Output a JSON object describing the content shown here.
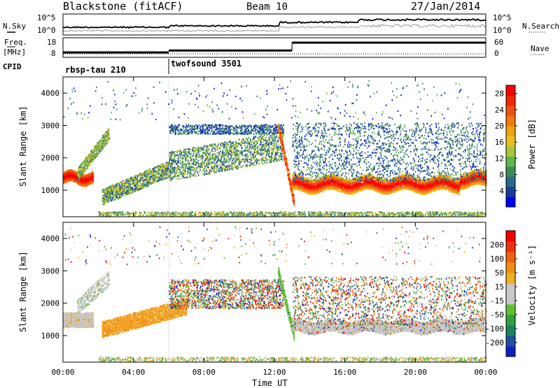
{
  "header": {
    "title": "Blackstone (fitACF)",
    "beam": "Beam 10",
    "date": "27/Jan/2014"
  },
  "summary": {
    "nsky_label": "N.Sky",
    "nsearch_label": "N.Search",
    "freq_label": "Freq.",
    "freq_unit": "[MHz]",
    "nave_label": "Nave",
    "cpid_label": "CPID",
    "left_ticks_noise": [
      "10^5",
      "10^0"
    ],
    "right_ticks_noise": [
      "10^5",
      "10^0"
    ],
    "freq_ticks": [
      "18",
      "8"
    ],
    "nave_ticks": [
      "60",
      "0"
    ],
    "cpid_segments": [
      {
        "name": "rbsp-tau 210",
        "start_h": 0,
        "end_h": 6
      },
      {
        "name": "twofsound 3501",
        "start_h": 6,
        "end_h": 24
      }
    ],
    "freq_mhz": [
      {
        "start_h": 0,
        "end_h": 6,
        "value": 10.5
      },
      {
        "start_h": 6,
        "end_h": 13,
        "value": 11.5
      },
      {
        "start_h": 13,
        "end_h": 24,
        "value": 15.5
      }
    ]
  },
  "chart_data": [
    {
      "type": "heatmap",
      "name": "power",
      "ylabel": "Slant Range [km]",
      "xlabel": "Time UT",
      "xlim": [
        "00:00",
        "24:00"
      ],
      "x_ticks": [
        "00:00",
        "04:00",
        "08:00",
        "12:00",
        "16:00",
        "20:00",
        "00:00"
      ],
      "ylim": [
        180,
        4500
      ],
      "y_ticks": [
        "1000",
        "2000",
        "3000",
        "4000"
      ],
      "colorbar": {
        "label": "Power [dB]",
        "ticks": [
          "4",
          "8",
          "12",
          "16",
          "20",
          "24",
          "28"
        ],
        "range": [
          0,
          30
        ],
        "colors": [
          "#0000ff",
          "#1a3aa0",
          "#2a6a8a",
          "#3c8c5a",
          "#5cb84a",
          "#a8c83a",
          "#e8c020",
          "#f0a010",
          "#f07810",
          "#f05010",
          "#f02808",
          "#ff0000"
        ]
      }
    },
    {
      "type": "heatmap",
      "name": "velocity",
      "ylabel": "Slant Range [km]",
      "xlabel": "Time UT",
      "xlim": [
        "00:00",
        "24:00"
      ],
      "x_ticks": [
        "00:00",
        "04:00",
        "08:00",
        "12:00",
        "16:00",
        "20:00",
        "00:00"
      ],
      "ylim": [
        180,
        4500
      ],
      "y_ticks": [
        "1000",
        "2000",
        "3000",
        "4000"
      ],
      "colorbar": {
        "label": "Velocity [m s⁻¹]",
        "ticks": [
          "200",
          "100",
          "50",
          "15",
          "-15",
          "-50",
          "-100",
          "-200"
        ],
        "colors": [
          "#1020c0",
          "#2050a0",
          "#208060",
          "#30a040",
          "#60c030",
          "#c8c8c8",
          "#c8c8c8",
          "#f0b020",
          "#f09010",
          "#f06010",
          "#f03010",
          "#f00000"
        ]
      }
    }
  ]
}
